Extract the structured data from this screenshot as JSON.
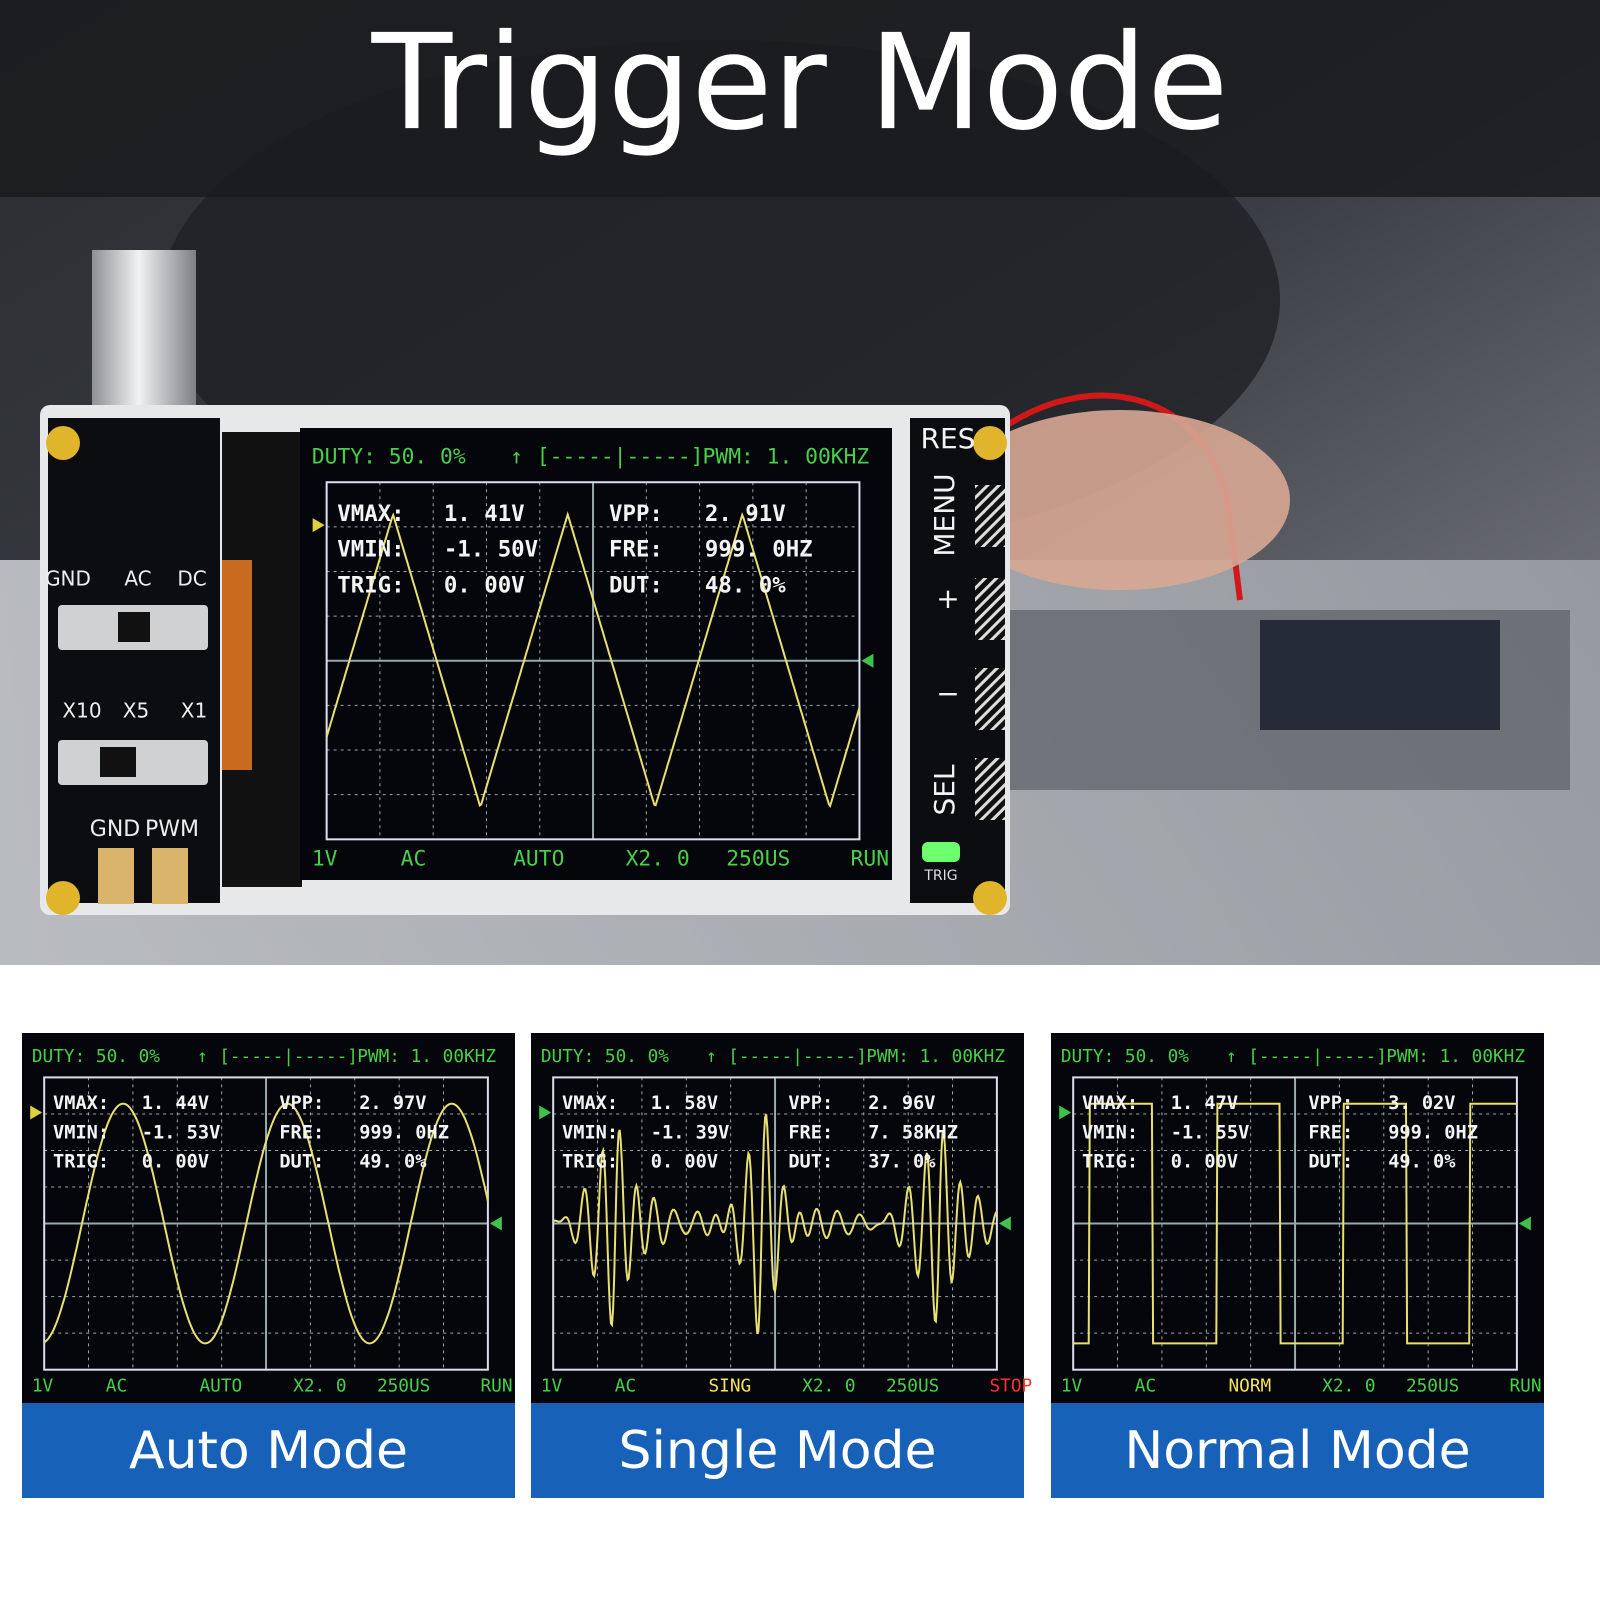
{
  "title": "Trigger Mode",
  "device": {
    "coupling_labels": [
      "GND",
      "AC",
      "DC"
    ],
    "probe_labels": [
      "X10",
      "X5",
      "X1"
    ],
    "output_labels": [
      "GND",
      "PWM"
    ],
    "buttons": [
      "RES",
      "MENU",
      "+",
      "−",
      "SEL"
    ],
    "indicator": "TRIG"
  },
  "main_screen": {
    "header": [
      "DUTY: 50. 0%",
      "↑",
      "[-----|-----]",
      "PWM: 1. 00KHZ"
    ],
    "readings": [
      [
        "VMAX:",
        "1. 41V",
        "VPP:",
        "2. 91V"
      ],
      [
        "VMIN:",
        "-1. 50V",
        "FRE:",
        "999. 0HZ"
      ],
      [
        "TRIG:",
        "0. 00V",
        "DUT:",
        "48. 0%"
      ]
    ],
    "footer": [
      "1V",
      "AC",
      "AUTO",
      "X2. 0",
      "250US",
      "RUN"
    ]
  },
  "panels": [
    {
      "caption": "Auto Mode",
      "screen": {
        "header": [
          "DUTY: 50. 0%",
          "↑",
          "[-----|-----]",
          "PWM: 1. 00KHZ"
        ],
        "readings": [
          [
            "VMAX:",
            "1. 44V",
            "VPP:",
            "2. 97V"
          ],
          [
            "VMIN:",
            "-1. 53V",
            "FRE:",
            "999. 0HZ"
          ],
          [
            "TRIG:",
            "0. 00V",
            "DUT:",
            "49. 0%"
          ]
        ],
        "footer": [
          "1V",
          "AC",
          "AUTO",
          "X2. 0",
          "250US",
          "RUN"
        ]
      }
    },
    {
      "caption": "Single Mode",
      "screen": {
        "header": [
          "DUTY: 50. 0%",
          "↑",
          "[-----|-----]",
          "PWM: 1. 00KHZ"
        ],
        "readings": [
          [
            "VMAX:",
            "1. 58V",
            "VPP:",
            "2. 96V"
          ],
          [
            "VMIN:",
            "-1. 39V",
            "FRE:",
            "7. 58KHZ"
          ],
          [
            "TRIG:",
            "0. 00V",
            "DUT:",
            "37. 0%"
          ]
        ],
        "footer": [
          "1V",
          "AC",
          "SING",
          "X2. 0",
          "250US",
          "STOP"
        ]
      }
    },
    {
      "caption": "Normal Mode",
      "screen": {
        "header": [
          "DUTY: 50. 0%",
          "↑",
          "[-----|-----]",
          "PWM: 1. 00KHZ"
        ],
        "readings": [
          [
            "VMAX:",
            "1. 47V",
            "VPP:",
            "3. 02V"
          ],
          [
            "VMIN:",
            "-1. 55V",
            "FRE:",
            "999. 0HZ"
          ],
          [
            "TRIG:",
            "0. 00V",
            "DUT:",
            "49. 0%"
          ]
        ],
        "footer": [
          "1V",
          "AC",
          "NORM",
          "X2. 0",
          "250US",
          "RUN"
        ]
      }
    }
  ]
}
